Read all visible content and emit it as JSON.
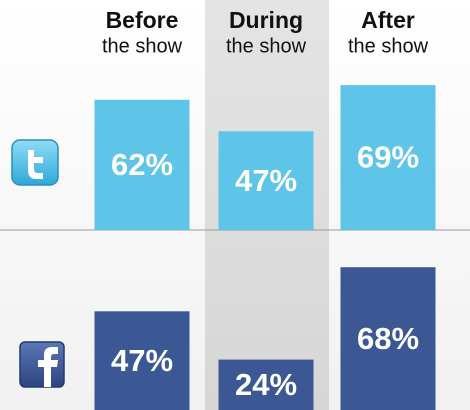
{
  "chart_data": {
    "type": "bar",
    "categories": [
      "Before",
      "During",
      "After"
    ],
    "category_subtitles": [
      "the show",
      "the show",
      "the show"
    ],
    "series": [
      {
        "color": "#5ec4e8",
        "values": [
          62,
          47,
          69
        ],
        "value_labels": [
          "62%",
          "47%",
          "69%"
        ]
      },
      {
        "color": "#3c5894",
        "values": [
          47,
          24,
          68
        ],
        "value_labels": [
          "47%",
          "24%",
          "68%"
        ]
      }
    ]
  }
}
